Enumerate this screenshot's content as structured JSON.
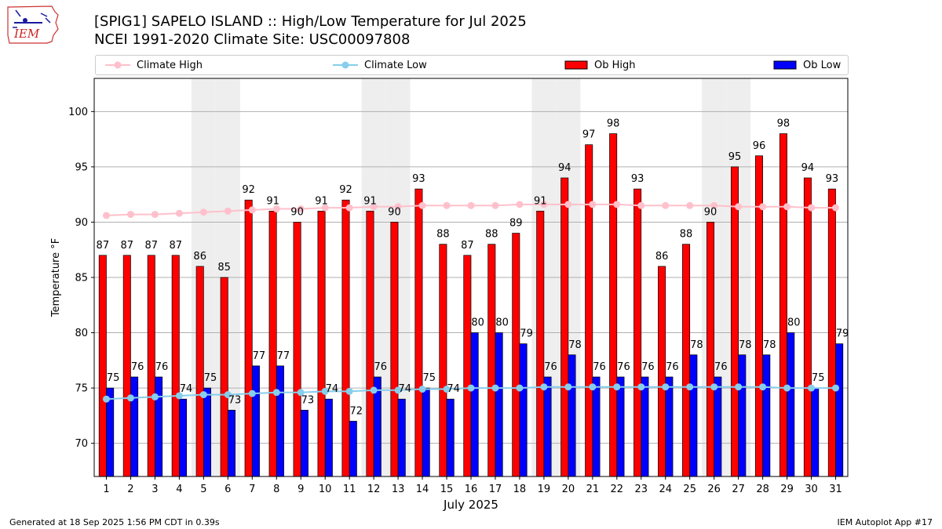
{
  "header": {
    "title_line1": "[SPIG1] SAPELO ISLAND :: High/Low Temperature for Jul 2025",
    "title_line2": "NCEI 1991-2020 Climate Site: USC00097808",
    "logo_text": "IEM"
  },
  "footer": {
    "generated": "Generated at 18 Sep 2025 1:56 PM CDT in 0.39s",
    "app": "IEM Autoplot App #17"
  },
  "colors": {
    "ob_high": "#ff0000",
    "ob_low": "#0000ff",
    "climate_high": "#ffc0cb",
    "climate_low": "#87ceeb",
    "weekend_shade": "#eeeeee",
    "grid": "#b0b0b0"
  },
  "legend": {
    "items": [
      {
        "label": "Climate High",
        "kind": "line",
        "color": "#ffc0cb"
      },
      {
        "label": "Climate Low",
        "kind": "line",
        "color": "#87ceeb"
      },
      {
        "label": "Ob High",
        "kind": "bar",
        "color": "#ff0000"
      },
      {
        "label": "Ob Low",
        "kind": "bar",
        "color": "#0000ff"
      }
    ]
  },
  "chart_data": {
    "type": "bar",
    "title": "[SPIG1] SAPELO ISLAND :: High/Low Temperature for Jul 2025",
    "xlabel": "July 2025",
    "ylabel": "Temperature °F",
    "ylim": [
      67,
      103
    ],
    "yticks": [
      70,
      75,
      80,
      85,
      90,
      95,
      100
    ],
    "grid": true,
    "legend_position": "top",
    "shaded_days": [
      5,
      6,
      12,
      13,
      19,
      20,
      26,
      27
    ],
    "categories": [
      "1",
      "2",
      "3",
      "4",
      "5",
      "6",
      "7",
      "8",
      "9",
      "10",
      "11",
      "12",
      "13",
      "14",
      "15",
      "16",
      "17",
      "18",
      "19",
      "20",
      "21",
      "22",
      "23",
      "24",
      "25",
      "26",
      "27",
      "28",
      "29",
      "30",
      "31"
    ],
    "series": [
      {
        "name": "Ob High",
        "kind": "bar",
        "values": [
          87,
          87,
          87,
          87,
          86,
          85,
          92,
          91,
          90,
          91,
          92,
          91,
          90,
          93,
          88,
          87,
          88,
          89,
          91,
          94,
          97,
          98,
          93,
          86,
          88,
          90,
          95,
          96,
          98,
          94,
          93
        ]
      },
      {
        "name": "Ob Low",
        "kind": "bar",
        "values": [
          75,
          76,
          76,
          74,
          75,
          73,
          77,
          77,
          73,
          74,
          72,
          76,
          74,
          75,
          74,
          80,
          80,
          79,
          76,
          78,
          76,
          76,
          76,
          76,
          78,
          76,
          78,
          78,
          80,
          75,
          79
        ]
      },
      {
        "name": "Climate High",
        "kind": "line",
        "values": [
          90.6,
          90.7,
          90.7,
          90.8,
          90.9,
          91.0,
          91.1,
          91.2,
          91.2,
          91.3,
          91.3,
          91.4,
          91.4,
          91.5,
          91.5,
          91.5,
          91.5,
          91.6,
          91.6,
          91.6,
          91.6,
          91.6,
          91.5,
          91.5,
          91.5,
          91.5,
          91.4,
          91.4,
          91.4,
          91.3,
          91.3
        ]
      },
      {
        "name": "Climate Low",
        "kind": "line",
        "values": [
          74.0,
          74.1,
          74.2,
          74.3,
          74.4,
          74.4,
          74.5,
          74.6,
          74.6,
          74.7,
          74.7,
          74.8,
          74.8,
          74.9,
          74.9,
          75.0,
          75.0,
          75.0,
          75.1,
          75.1,
          75.1,
          75.1,
          75.1,
          75.1,
          75.1,
          75.1,
          75.1,
          75.1,
          75.0,
          75.0,
          75.0
        ]
      }
    ]
  }
}
